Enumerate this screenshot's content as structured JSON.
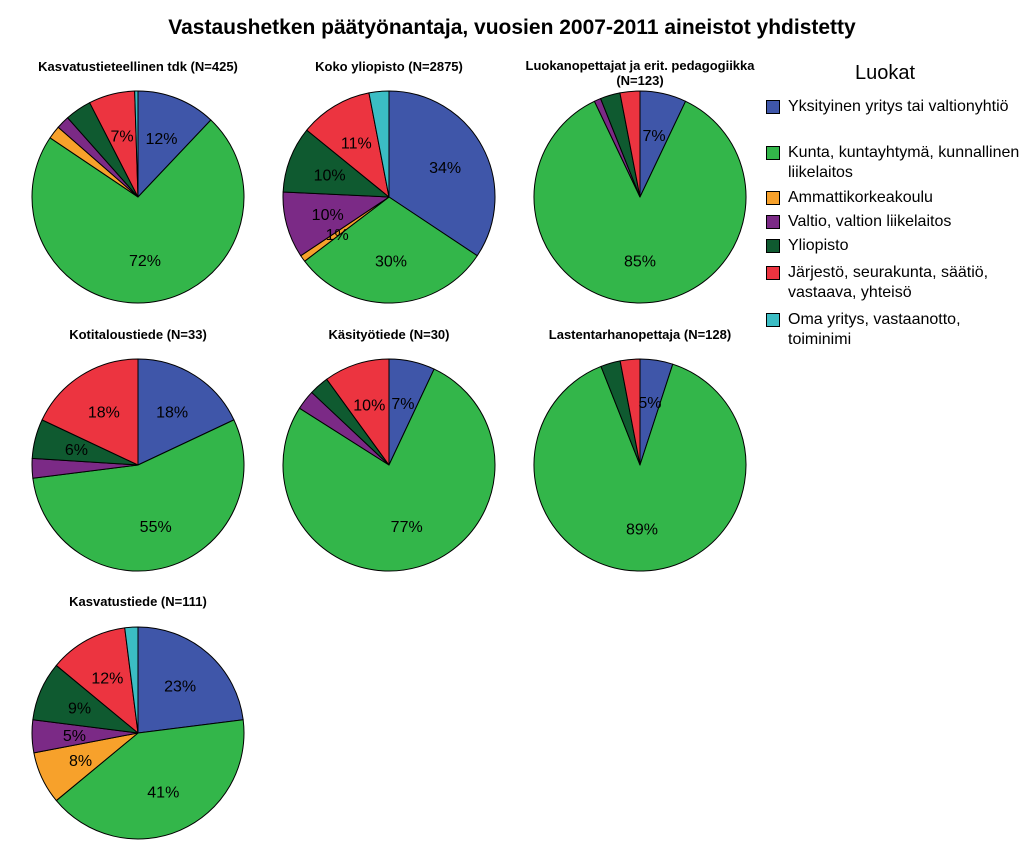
{
  "chart_data": {
    "title": "Vastaushetken päätyönantaja, vuosien 2007-2011 aineistot yhdistetty",
    "legend_title": "Luokat",
    "legend_position": "right",
    "categories": [
      {
        "label": "Yksityinen yritys tai valtionyhtiö",
        "color": "#3f56a9"
      },
      {
        "label": "Kunta, kuntayhtymä, kunnallinen liikelaitos",
        "color": "#33b64a"
      },
      {
        "label": "Ammattikorkeakoulu",
        "color": "#f7a12b"
      },
      {
        "label": "Valtio, valtion liikelaitos",
        "color": "#7b2a86"
      },
      {
        "label": "Yliopisto",
        "color": "#0f5a30"
      },
      {
        "label": "Järjestö, seurakunta, säätiö, vastaava, yhteisö",
        "color": "#ec3440"
      },
      {
        "label": "Oma yritys, vastaanotto, toiminimi",
        "color": "#3bbdc4"
      }
    ],
    "pies": [
      {
        "type": "pie",
        "title": "Kasvatustieteellinen tdk (N=425)",
        "values": [
          12,
          72,
          2,
          2,
          4,
          7,
          0.5
        ],
        "labels": [
          "12%",
          "72%",
          "",
          "",
          "",
          "7%",
          ""
        ]
      },
      {
        "type": "pie",
        "title": "Koko yliopisto (N=2875)",
        "values": [
          34,
          30,
          1,
          10,
          10,
          11,
          3
        ],
        "labels": [
          "34%",
          "30%",
          "1%",
          "10%",
          "10%",
          "11%",
          ""
        ]
      },
      {
        "type": "pie",
        "title": "Luokanopettajat ja erit. pedagogiikka (N=123)",
        "values": [
          7,
          85,
          0,
          1,
          3,
          3,
          0
        ],
        "labels": [
          "7%",
          "85%",
          "",
          "",
          "",
          "",
          ""
        ]
      },
      {
        "type": "pie",
        "title": "Kotitaloustiede (N=33)",
        "values": [
          18,
          55,
          0,
          3,
          6,
          18,
          0
        ],
        "labels": [
          "18%",
          "55%",
          "",
          "",
          "6%",
          "18%",
          ""
        ]
      },
      {
        "type": "pie",
        "title": "Käsityötiede (N=30)",
        "values": [
          7,
          77,
          0,
          3,
          3,
          10,
          0
        ],
        "labels": [
          "7%",
          "77%",
          "",
          "",
          "",
          "10%",
          ""
        ]
      },
      {
        "type": "pie",
        "title": "Lastentarhanopettaja (N=128)",
        "values": [
          5,
          89,
          0,
          0,
          3,
          3,
          0
        ],
        "labels": [
          "5%",
          "89%",
          "",
          "",
          "",
          "",
          ""
        ]
      },
      {
        "type": "pie",
        "title": "Kasvatustiede (N=111)",
        "values": [
          23,
          41,
          8,
          5,
          9,
          12,
          2
        ],
        "labels": [
          "23%",
          "41%",
          "8%",
          "5%",
          "9%",
          "12%",
          ""
        ]
      }
    ]
  }
}
